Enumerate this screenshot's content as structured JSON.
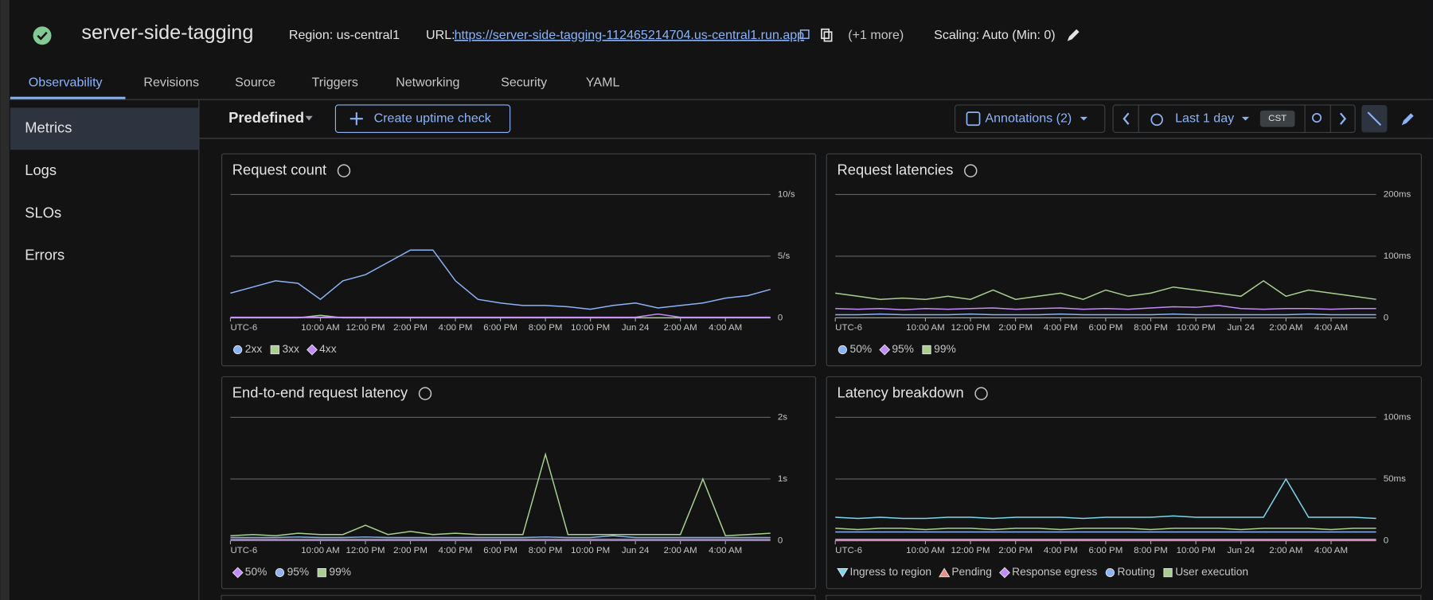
{
  "header": {
    "title": "server-side-tagging",
    "region": "Region: us-central1",
    "url_label": "URL:",
    "url": "https://server-side-tagging-112465214704.us-central1.run.app",
    "more": "(+1 more)",
    "scaling": "Scaling: Auto (Min: 0)"
  },
  "tabs": [
    "Observability",
    "Revisions",
    "Source",
    "Triggers",
    "Networking",
    "Security",
    "YAML"
  ],
  "sidebar": [
    "Metrics",
    "Logs",
    "SLOs",
    "Errors"
  ],
  "toolbar": {
    "preset": "Predefined",
    "create": "Create uptime check",
    "annotations": "Annotations (2)",
    "range": "Last 1 day",
    "timezone": "CST"
  },
  "chart_data": [
    {
      "type": "line",
      "title": "Request count",
      "x": [
        6,
        7,
        8,
        9,
        10,
        11,
        12,
        13,
        14,
        15,
        16,
        17,
        18,
        19,
        20,
        21,
        22,
        23,
        24,
        25,
        26,
        27,
        28,
        29,
        30
      ],
      "xlim": [
        6,
        30
      ],
      "xticks": [
        {
          "value": 6,
          "label": "UTC-6"
        },
        {
          "value": 10,
          "label": "10:00 AM"
        },
        {
          "value": 12,
          "label": "12:00 PM"
        },
        {
          "value": 14,
          "label": "2:00 PM"
        },
        {
          "value": 16,
          "label": "4:00 PM"
        },
        {
          "value": 18,
          "label": "6:00 PM"
        },
        {
          "value": 20,
          "label": "8:00 PM"
        },
        {
          "value": 22,
          "label": "10:00 PM"
        },
        {
          "value": 24,
          "label": "Jun 24"
        },
        {
          "value": 26,
          "label": "2:00 AM"
        },
        {
          "value": 28,
          "label": "4:00 AM"
        }
      ],
      "ylim": [
        0,
        10
      ],
      "yticks": [
        0,
        {
          "value": 5,
          "label": "5/s"
        },
        {
          "value": 10,
          "label": "10/s"
        }
      ],
      "grid": true,
      "series": [
        {
          "name": "2xx",
          "color": "#8ab4f8",
          "marker": "circle",
          "values": [
            2.0,
            2.5,
            3.0,
            2.8,
            1.5,
            3.0,
            3.5,
            4.5,
            5.5,
            5.5,
            3.0,
            1.5,
            1.2,
            1.0,
            1.0,
            0.9,
            0.7,
            1.0,
            1.2,
            0.8,
            1.0,
            1.2,
            1.6,
            1.8,
            2.3
          ]
        },
        {
          "name": "3xx",
          "color": "#a8d08d",
          "marker": "square",
          "values": [
            0,
            0,
            0,
            0,
            0.2,
            0,
            0,
            0,
            0,
            0,
            0,
            0,
            0,
            0,
            0,
            0,
            0,
            0,
            0,
            0,
            0,
            0,
            0,
            0,
            0
          ]
        },
        {
          "name": "4xx",
          "color": "#c58af9",
          "marker": "diamond",
          "values": [
            0.05,
            0.05,
            0.05,
            0.05,
            0.05,
            0.05,
            0.05,
            0.05,
            0.05,
            0.05,
            0.05,
            0.05,
            0.05,
            0.05,
            0.05,
            0.05,
            0.05,
            0.05,
            0.05,
            0.3,
            0.05,
            0.05,
            0.05,
            0.05,
            0.05
          ]
        }
      ]
    },
    {
      "type": "line",
      "title": "Request latencies",
      "x": [
        6,
        7,
        8,
        9,
        10,
        11,
        12,
        13,
        14,
        15,
        16,
        17,
        18,
        19,
        20,
        21,
        22,
        23,
        24,
        25,
        26,
        27,
        28,
        29,
        30
      ],
      "xlim": [
        6,
        30
      ],
      "xticks": [
        {
          "value": 6,
          "label": "UTC-6"
        },
        {
          "value": 10,
          "label": "10:00 AM"
        },
        {
          "value": 12,
          "label": "12:00 PM"
        },
        {
          "value": 14,
          "label": "2:00 PM"
        },
        {
          "value": 16,
          "label": "4:00 PM"
        },
        {
          "value": 18,
          "label": "6:00 PM"
        },
        {
          "value": 20,
          "label": "8:00 PM"
        },
        {
          "value": 22,
          "label": "10:00 PM"
        },
        {
          "value": 24,
          "label": "Jun 24"
        },
        {
          "value": 26,
          "label": "2:00 AM"
        },
        {
          "value": 28,
          "label": "4:00 AM"
        }
      ],
      "ylim": [
        0,
        200
      ],
      "yticks": [
        0,
        {
          "value": 100,
          "label": "100ms"
        },
        {
          "value": 200,
          "label": "200ms"
        }
      ],
      "grid": true,
      "series": [
        {
          "name": "50%",
          "color": "#8ab4f8",
          "marker": "circle",
          "values": [
            5,
            5,
            6,
            5,
            5,
            5,
            6,
            5,
            5,
            5,
            6,
            5,
            5,
            5,
            5,
            6,
            5,
            5,
            5,
            5,
            5,
            6,
            5,
            5,
            5
          ]
        },
        {
          "name": "95%",
          "color": "#c58af9",
          "marker": "diamond",
          "values": [
            15,
            14,
            15,
            13,
            15,
            14,
            15,
            16,
            14,
            15,
            16,
            14,
            15,
            14,
            16,
            18,
            17,
            20,
            15,
            14,
            15,
            15,
            14,
            15,
            15
          ]
        },
        {
          "name": "99%",
          "color": "#a8d08d",
          "marker": "square",
          "values": [
            40,
            35,
            30,
            32,
            30,
            35,
            30,
            45,
            30,
            35,
            40,
            30,
            45,
            35,
            40,
            50,
            45,
            40,
            35,
            60,
            35,
            45,
            40,
            35,
            30
          ]
        }
      ]
    },
    {
      "type": "line",
      "title": "End-to-end request latency",
      "x": [
        6,
        7,
        8,
        9,
        10,
        11,
        12,
        13,
        14,
        15,
        16,
        17,
        18,
        19,
        20,
        21,
        22,
        23,
        24,
        25,
        26,
        27,
        28,
        29,
        30
      ],
      "xlim": [
        6,
        30
      ],
      "xticks": [
        {
          "value": 6,
          "label": "UTC-6"
        },
        {
          "value": 10,
          "label": "10:00 AM"
        },
        {
          "value": 12,
          "label": "12:00 PM"
        },
        {
          "value": 14,
          "label": "2:00 PM"
        },
        {
          "value": 16,
          "label": "4:00 PM"
        },
        {
          "value": 18,
          "label": "6:00 PM"
        },
        {
          "value": 20,
          "label": "8:00 PM"
        },
        {
          "value": 22,
          "label": "10:00 PM"
        },
        {
          "value": 24,
          "label": "Jun 24"
        },
        {
          "value": 26,
          "label": "2:00 AM"
        },
        {
          "value": 28,
          "label": "4:00 AM"
        }
      ],
      "ylim": [
        0,
        2
      ],
      "yticks": [
        0,
        {
          "value": 1,
          "label": "1s"
        },
        {
          "value": 2,
          "label": "2s"
        }
      ],
      "grid": true,
      "series": [
        {
          "name": "50%",
          "color": "#c58af9",
          "marker": "diamond",
          "values": [
            0.02,
            0.02,
            0.02,
            0.02,
            0.02,
            0.02,
            0.02,
            0.02,
            0.02,
            0.02,
            0.02,
            0.02,
            0.02,
            0.02,
            0.02,
            0.02,
            0.02,
            0.02,
            0.02,
            0.02,
            0.02,
            0.02,
            0.02,
            0.02,
            0.02
          ]
        },
        {
          "name": "95%",
          "color": "#8ab4f8",
          "marker": "circle",
          "values": [
            0.05,
            0.05,
            0.05,
            0.06,
            0.05,
            0.05,
            0.06,
            0.05,
            0.05,
            0.05,
            0.05,
            0.05,
            0.05,
            0.05,
            0.06,
            0.05,
            0.05,
            0.08,
            0.05,
            0.05,
            0.05,
            0.05,
            0.05,
            0.05,
            0.05
          ]
        },
        {
          "name": "99%",
          "color": "#a8d08d",
          "marker": "square",
          "values": [
            0.08,
            0.1,
            0.08,
            0.12,
            0.1,
            0.1,
            0.25,
            0.1,
            0.15,
            0.1,
            0.12,
            0.1,
            0.1,
            0.1,
            1.4,
            0.1,
            0.1,
            0.1,
            0.1,
            0.1,
            0.1,
            1.0,
            0.08,
            0.1,
            0.12
          ]
        }
      ]
    },
    {
      "type": "line",
      "title": "Latency breakdown",
      "x": [
        6,
        7,
        8,
        9,
        10,
        11,
        12,
        13,
        14,
        15,
        16,
        17,
        18,
        19,
        20,
        21,
        22,
        23,
        24,
        25,
        26,
        27,
        28,
        29,
        30
      ],
      "xlim": [
        6,
        30
      ],
      "xticks": [
        {
          "value": 6,
          "label": "UTC-6"
        },
        {
          "value": 10,
          "label": "10:00 AM"
        },
        {
          "value": 12,
          "label": "12:00 PM"
        },
        {
          "value": 14,
          "label": "2:00 PM"
        },
        {
          "value": 16,
          "label": "4:00 PM"
        },
        {
          "value": 18,
          "label": "6:00 PM"
        },
        {
          "value": 20,
          "label": "8:00 PM"
        },
        {
          "value": 22,
          "label": "10:00 PM"
        },
        {
          "value": 24,
          "label": "Jun 24"
        },
        {
          "value": 26,
          "label": "2:00 AM"
        },
        {
          "value": 28,
          "label": "4:00 AM"
        }
      ],
      "ylim": [
        0,
        100
      ],
      "yticks": [
        0,
        {
          "value": 50,
          "label": "50ms"
        },
        {
          "value": 100,
          "label": "100ms"
        }
      ],
      "grid": true,
      "series": [
        {
          "name": "Ingress to region",
          "color": "#78d9ec",
          "marker": "triangle-down",
          "values": [
            19,
            18,
            19,
            18,
            18,
            19,
            19,
            18,
            19,
            19,
            19,
            18,
            19,
            19,
            19,
            20,
            19,
            19,
            19,
            19,
            50,
            19,
            19,
            19,
            18
          ]
        },
        {
          "name": "Pending",
          "color": "#f28b82",
          "marker": "triangle-up",
          "values": [
            0,
            0,
            0,
            0,
            0,
            0,
            0,
            0,
            0,
            0,
            0,
            0,
            0,
            0,
            0,
            0,
            0,
            0,
            0,
            0,
            0,
            0,
            0,
            0,
            0
          ]
        },
        {
          "name": "Response egress",
          "color": "#c58af9",
          "marker": "diamond",
          "values": [
            1,
            1,
            1,
            1,
            1,
            1,
            1,
            1,
            1,
            1,
            1,
            1,
            1,
            1,
            1,
            1,
            1,
            1,
            1,
            1,
            1,
            1,
            1,
            1,
            1
          ]
        },
        {
          "name": "Routing",
          "color": "#8ab4f8",
          "marker": "circle",
          "values": [
            7,
            7,
            7,
            7,
            7,
            7,
            7,
            7,
            7,
            7,
            7,
            7,
            7,
            7,
            7,
            7,
            7,
            7,
            7,
            7,
            7,
            7,
            7,
            7,
            7
          ]
        },
        {
          "name": "User execution",
          "color": "#a8d08d",
          "marker": "square",
          "values": [
            10,
            9,
            10,
            10,
            9,
            10,
            10,
            9,
            10,
            10,
            9,
            10,
            10,
            10,
            9,
            10,
            10,
            10,
            9,
            10,
            10,
            10,
            9,
            10,
            10
          ]
        }
      ]
    }
  ]
}
